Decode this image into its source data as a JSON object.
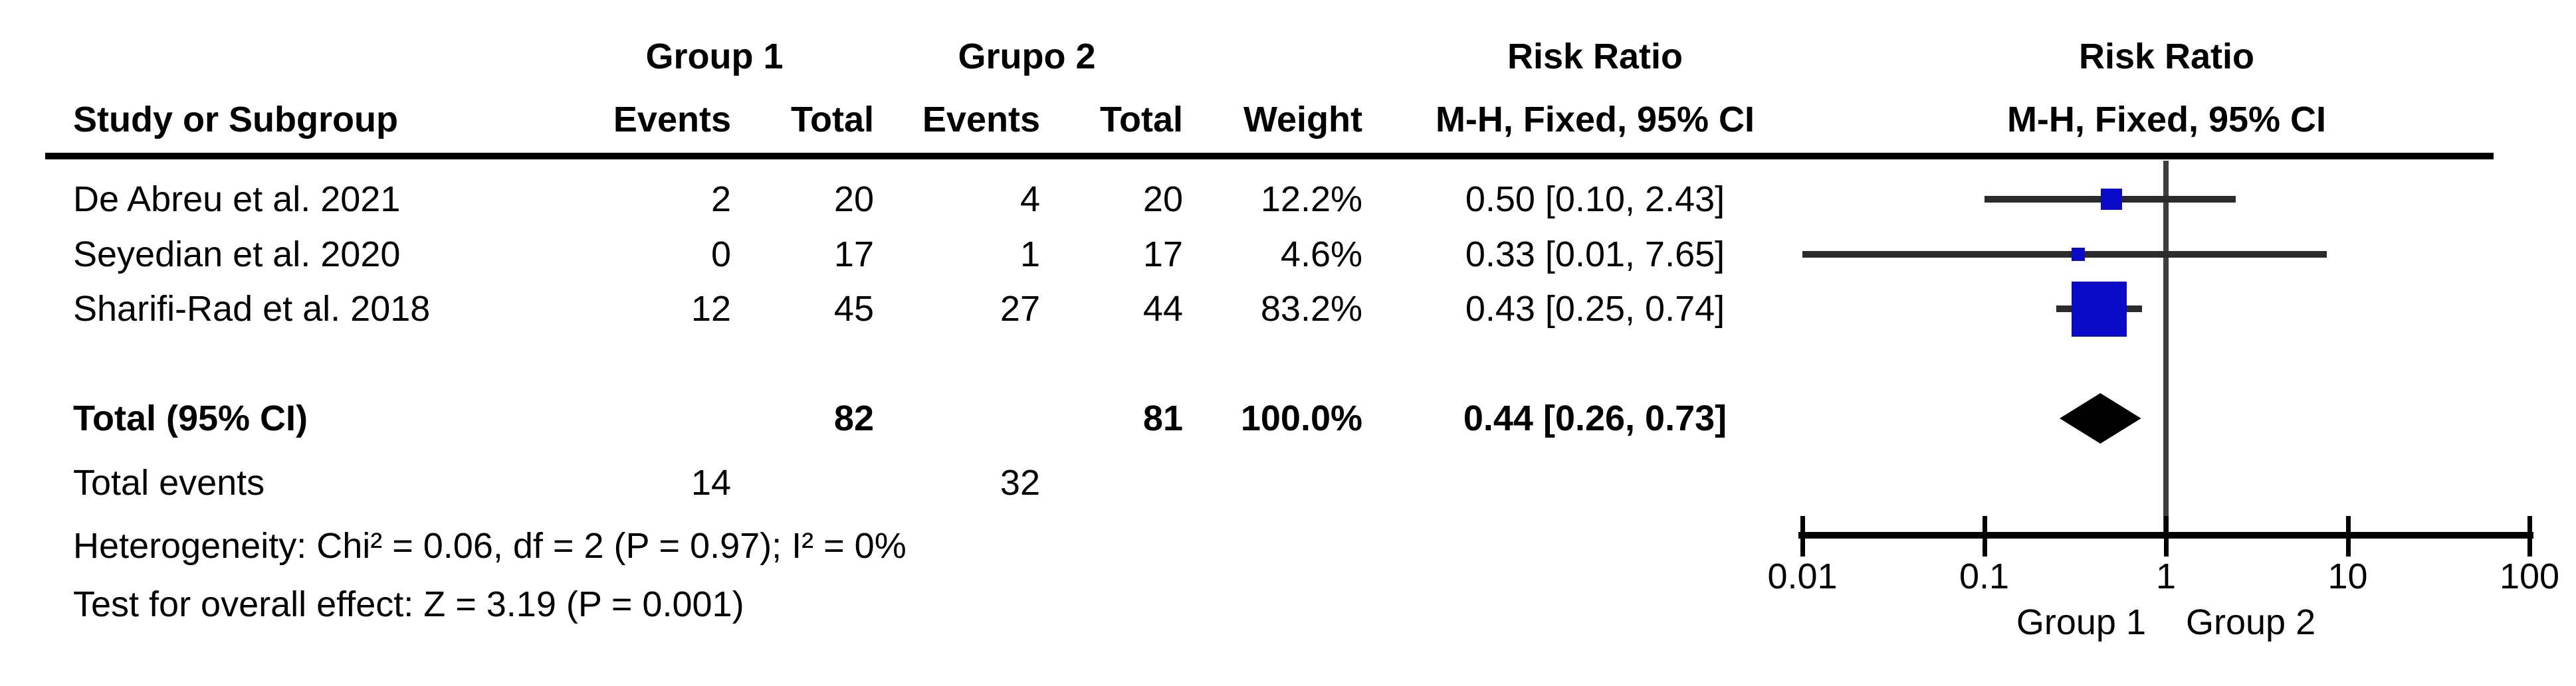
{
  "table": {
    "group_headers": {
      "group1": "Group 1",
      "group2": "Grupo 2",
      "risk_ratio_text_col": "Risk Ratio",
      "risk_ratio_plot_col": "Risk Ratio"
    },
    "column_headers": {
      "study": "Study or Subgroup",
      "g1_events": "Events",
      "g1_total": "Total",
      "g2_events": "Events",
      "g2_total": "Total",
      "weight": "Weight",
      "mh_text_col": "M-H, Fixed, 95% CI",
      "mh_plot_col": "M-H, Fixed, 95% CI"
    },
    "studies": [
      {
        "name": "De Abreu et al. 2021",
        "g1_events": "2",
        "g1_total": "20",
        "g2_events": "4",
        "g2_total": "20",
        "weight": "12.2%",
        "rr_ci": "0.50 [0.10, 2.43]"
      },
      {
        "name": "Seyedian et al. 2020",
        "g1_events": "0",
        "g1_total": "17",
        "g2_events": "1",
        "g2_total": "17",
        "weight": "4.6%",
        "rr_ci": "0.33 [0.01, 7.65]"
      },
      {
        "name": "Sharifi-Rad et al. 2018",
        "g1_events": "12",
        "g1_total": "45",
        "g2_events": "27",
        "g2_total": "44",
        "weight": "83.2%",
        "rr_ci": "0.43 [0.25, 0.74]"
      }
    ],
    "total_row": {
      "label": "Total (95% CI)",
      "g1_total": "82",
      "g2_total": "81",
      "weight": "100.0%",
      "rr_ci": "0.44 [0.26, 0.73]"
    },
    "total_events_row": {
      "label": "Total events",
      "g1_events": "14",
      "g2_events": "32"
    },
    "heterogeneity": "Heterogeneity: Chi² = 0.06, df = 2 (P = 0.97); I² = 0%",
    "overall_effect": "Test for overall effect: Z = 3.19 (P = 0.001)"
  },
  "chart_data": {
    "type": "scatter",
    "subtype": "forest-plot",
    "title": "Risk Ratio",
    "subtitle": "M-H, Fixed, 95% CI",
    "effect_measure": "Risk Ratio (M-H, Fixed, 95% CI)",
    "x_scale": "log10",
    "xlim": [
      0.01,
      100
    ],
    "x_ticks": [
      0.01,
      0.1,
      1,
      10,
      100
    ],
    "x_tick_labels": [
      "0.01",
      "0.1",
      "1",
      "10",
      "100"
    ],
    "null_line": 1,
    "favours_left_label": "Group 1",
    "favours_right_label": "Group 2",
    "points": [
      {
        "study": "De Abreu et al. 2021",
        "rr": 0.5,
        "ci_low": 0.1,
        "ci_high": 2.43,
        "weight_pct": 12.2
      },
      {
        "study": "Seyedian et al. 2020",
        "rr": 0.33,
        "ci_low": 0.01,
        "ci_high": 7.65,
        "weight_pct": 4.6
      },
      {
        "study": "Sharifi-Rad et al. 2018",
        "rr": 0.43,
        "ci_low": 0.25,
        "ci_high": 0.74,
        "weight_pct": 83.2
      }
    ],
    "total": {
      "rr": 0.44,
      "ci_low": 0.26,
      "ci_high": 0.73,
      "weight_pct": 100.0
    },
    "marker_color": "#0a0ac8",
    "ci_line_color": "#2a2a2a",
    "null_line_color": "#3d3d3d",
    "axis_color": "#000000",
    "diamond_color": "#000000"
  }
}
